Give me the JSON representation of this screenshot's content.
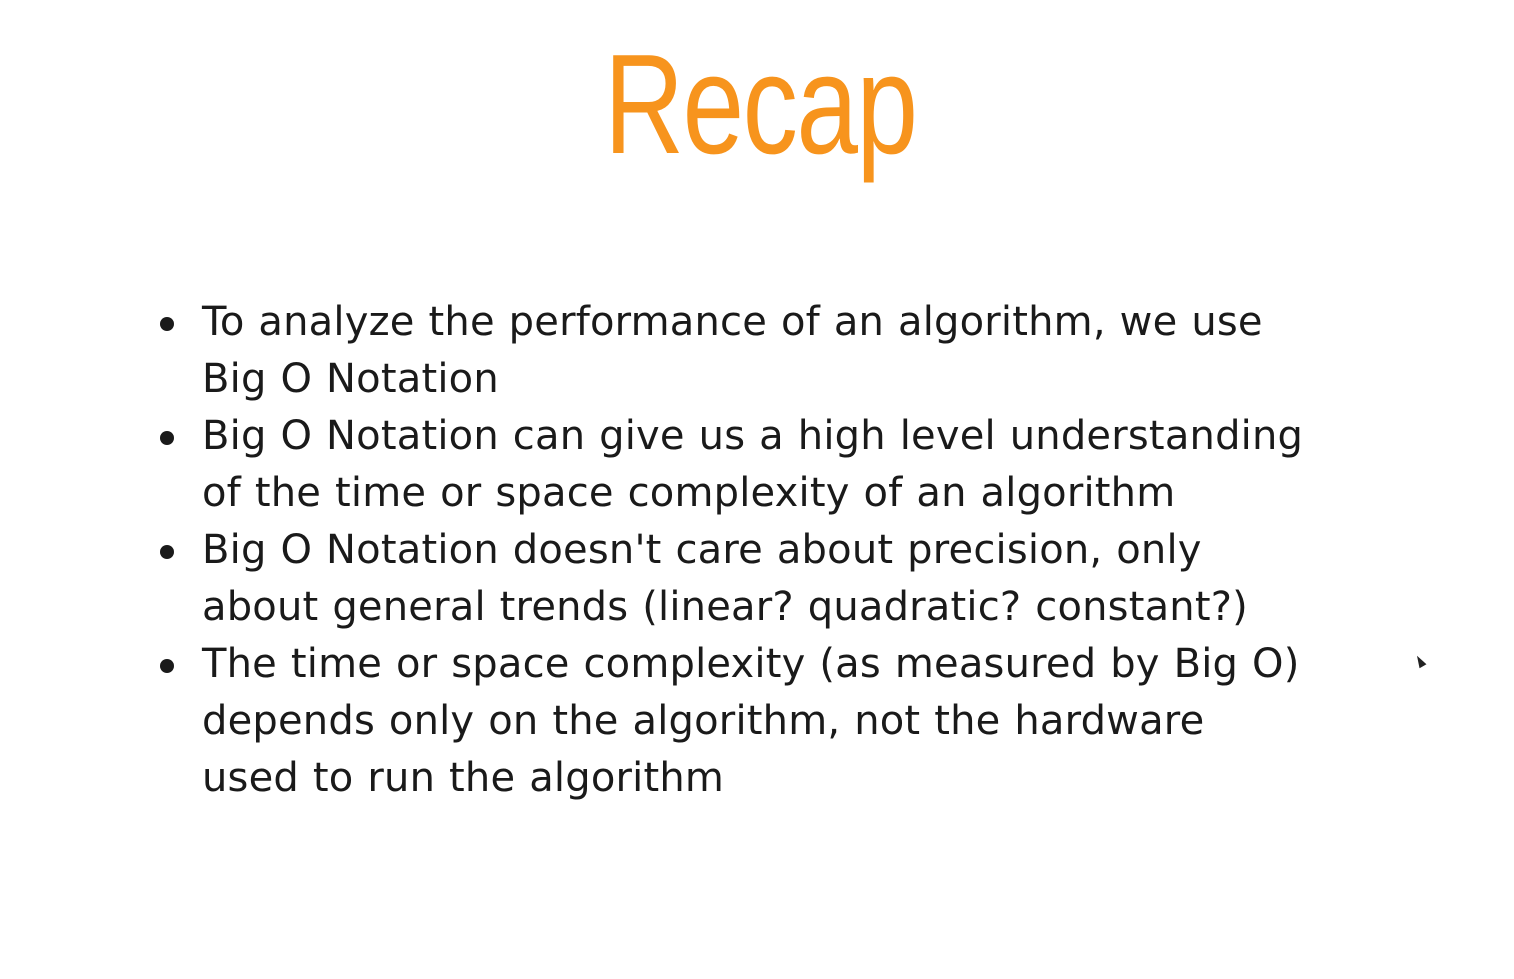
{
  "slide": {
    "title": "Recap",
    "bullets": [
      "To analyze the performance of an algorithm, we use\nBig O Notation",
      "Big O Notation can give us a high level understanding\nof the time or space complexity of an algorithm",
      "Big O Notation doesn't care about precision, only\nabout general trends (linear? quadratic? constant?)",
      "The time or space complexity (as measured by Big O)\ndepends only on the algorithm, not the hardware\nused to run the algorithm"
    ]
  },
  "colors": {
    "title": "#f7941d",
    "text": "#1a1a1a",
    "background": "#ffffff"
  },
  "icons": {
    "cursor": "mouse-pointer-icon"
  }
}
